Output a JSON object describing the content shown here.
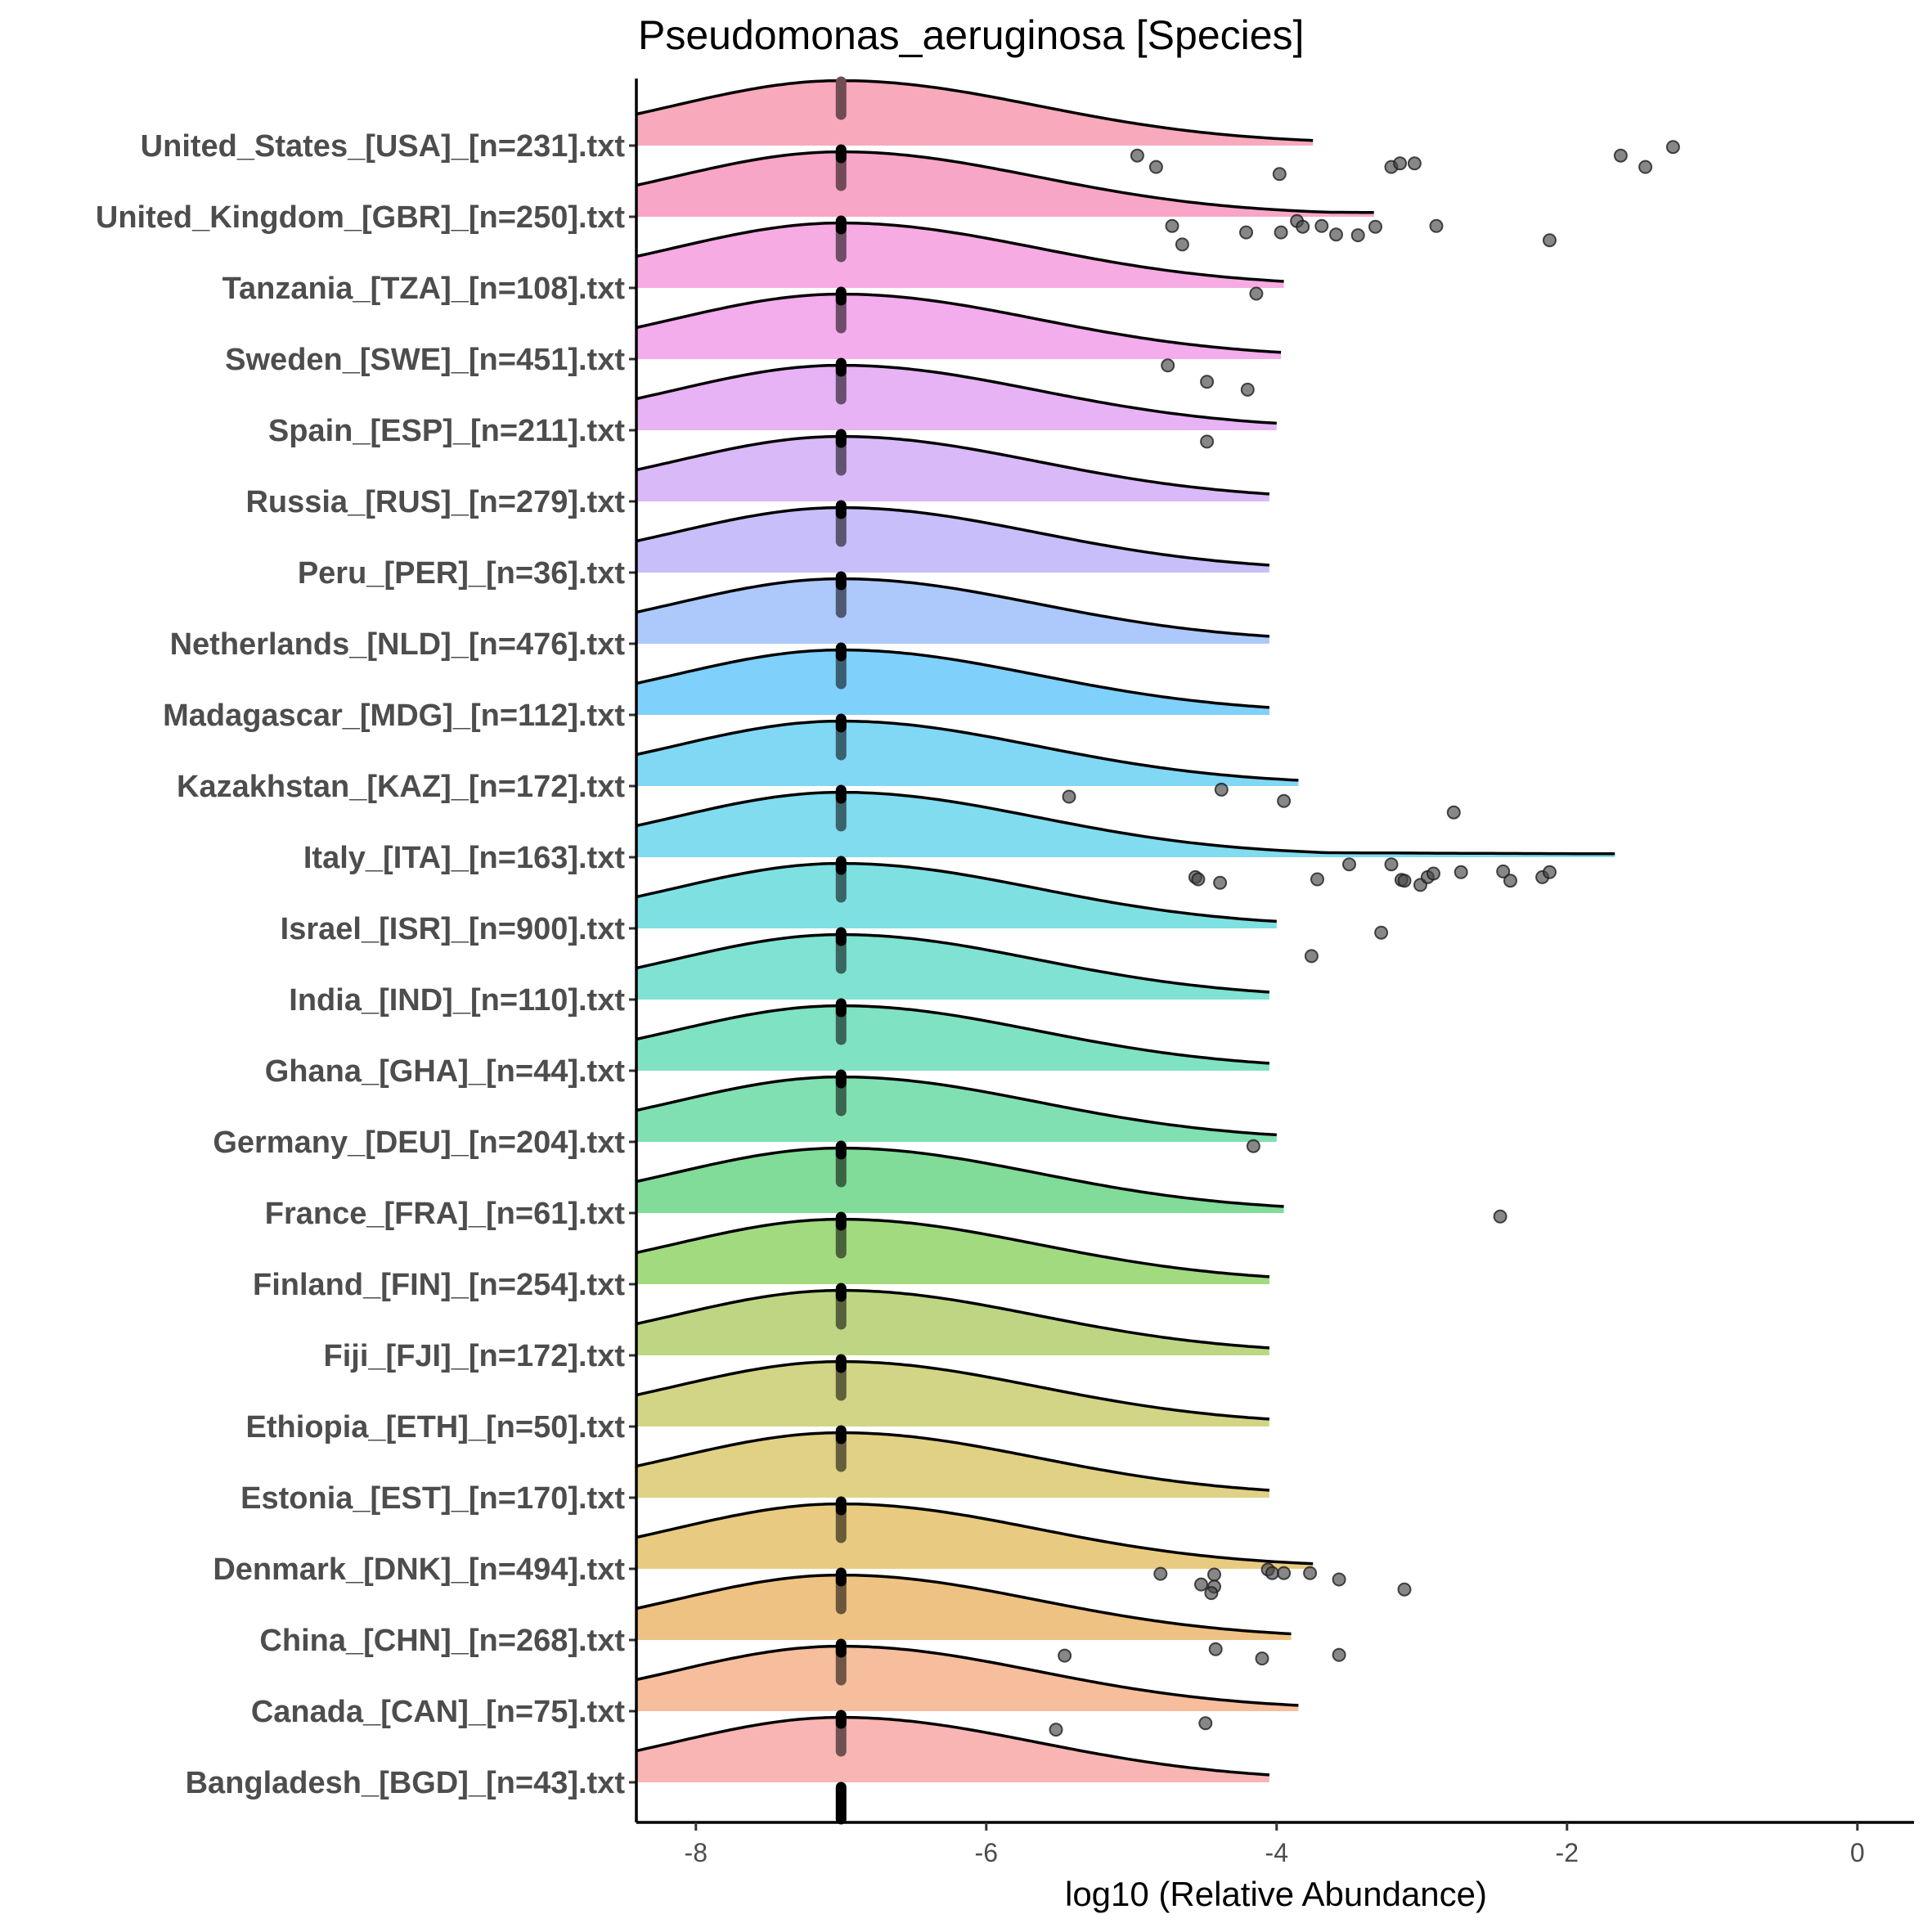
{
  "chart_data": {
    "type": "ridgeline",
    "title": "Pseudomonas_aeruginosa [Species]",
    "xlabel": "log10 (Relative Abundance)",
    "ylabel": "",
    "xlim": [
      -8.41,
      0.39
    ],
    "xticks": [
      -8,
      -6,
      -4,
      -2,
      0
    ],
    "xtick_labels": [
      "-8",
      "-6",
      "-4",
      "-2",
      "0"
    ],
    "grid": false,
    "legend": "none",
    "median_line_color": "#000000",
    "point_color": "#595959",
    "categories": [
      {
        "label": "United_States_[USA]_[n=231].txt",
        "color": "#F8A9BC",
        "peak": -7.0,
        "density_end": -3.75,
        "median": -7.0,
        "points": [
          [
            -4.96,
            0.14
          ],
          [
            -4.83,
            0.3
          ],
          [
            -3.98,
            0.4
          ],
          [
            -3.21,
            0.3
          ],
          [
            -3.15,
            0.25
          ],
          [
            -3.05,
            0.25
          ],
          [
            -1.63,
            0.14
          ],
          [
            -1.46,
            0.3
          ],
          [
            -1.27,
            0.02
          ]
        ]
      },
      {
        "label": "United_Kingdom_[GBR]_[n=250].txt",
        "color": "#F8A6C8",
        "peak": -7.0,
        "density_end": -3.33,
        "median": -7.0,
        "points": [
          [
            -4.72,
            0.13
          ],
          [
            -4.65,
            0.39
          ],
          [
            -4.21,
            0.22
          ],
          [
            -3.97,
            0.22
          ],
          [
            -3.86,
            0.06
          ],
          [
            -3.82,
            0.14
          ],
          [
            -3.69,
            0.13
          ],
          [
            -3.59,
            0.25
          ],
          [
            -3.44,
            0.26
          ],
          [
            -3.32,
            0.14
          ],
          [
            -2.9,
            0.13
          ],
          [
            -2.12,
            0.33
          ]
        ]
      },
      {
        "label": "Tanzania_[TZA]_[n=108].txt",
        "color": "#F6ABE2",
        "peak": -7.0,
        "density_end": -3.95,
        "median": -7.0,
        "points": [
          [
            -4.14,
            0.08
          ]
        ]
      },
      {
        "label": "Sweden_[SWE]_[n=451].txt",
        "color": "#F3ACEC",
        "peak": -7.0,
        "density_end": -3.97,
        "median": -7.0,
        "points": [
          [
            -4.75,
            0.09
          ],
          [
            -4.48,
            0.32
          ],
          [
            -4.2,
            0.43
          ]
        ]
      },
      {
        "label": "Spain_[ESP]_[n=211].txt",
        "color": "#E8B3F5",
        "peak": -7.0,
        "density_end": -4.0,
        "median": -7.0,
        "points": [
          [
            -4.48,
            0.16
          ]
        ]
      },
      {
        "label": "Russia_[RUS]_[n=279].txt",
        "color": "#DAB9F8",
        "peak": -7.0,
        "density_end": -4.05,
        "median": -7.0,
        "points": []
      },
      {
        "label": "Peru_[PER]_[n=36].txt",
        "color": "#C8BEF9",
        "peak": -7.0,
        "density_end": -4.05,
        "median": -7.0,
        "points": []
      },
      {
        "label": "Netherlands_[NLD]_[n=476].txt",
        "color": "#ADC8FA",
        "peak": -7.0,
        "density_end": -4.05,
        "median": -7.0,
        "points": []
      },
      {
        "label": "Madagascar_[MDG]_[n=112].txt",
        "color": "#7FD0FA",
        "peak": -7.0,
        "density_end": -4.05,
        "median": -7.0,
        "points": []
      },
      {
        "label": "Kazakhstan_[KAZ]_[n=172].txt",
        "color": "#80D8F5",
        "peak": -7.0,
        "density_end": -3.85,
        "median": -7.0,
        "points": [
          [
            -5.43,
            0.15
          ],
          [
            -4.38,
            0.05
          ],
          [
            -3.95,
            0.21
          ],
          [
            -2.78,
            0.37
          ]
        ]
      },
      {
        "label": "Italy_[ITA]_[n=163].txt",
        "color": "#80DCEE",
        "peak": -7.0,
        "density_end": -1.67,
        "median": -7.0,
        "points": [
          [
            -4.56,
            0.28
          ],
          [
            -4.54,
            0.31
          ],
          [
            -4.39,
            0.36
          ],
          [
            -3.72,
            0.31
          ],
          [
            -3.5,
            0.1
          ],
          [
            -3.21,
            0.1
          ],
          [
            -3.14,
            0.32
          ],
          [
            -3.12,
            0.33
          ],
          [
            -3.01,
            0.39
          ],
          [
            -2.96,
            0.28
          ],
          [
            -2.92,
            0.23
          ],
          [
            -2.73,
            0.21
          ],
          [
            -2.44,
            0.2
          ],
          [
            -2.39,
            0.33
          ],
          [
            -2.17,
            0.28
          ],
          [
            -2.12,
            0.21
          ]
        ]
      },
      {
        "label": "Israel_[ISR]_[n=900].txt",
        "color": "#7FE0E2",
        "peak": -7.0,
        "density_end": -4.0,
        "median": -7.0,
        "points": [
          [
            -3.28,
            0.06
          ],
          [
            -3.76,
            0.39
          ]
        ]
      },
      {
        "label": "India_[IND]_[n=110].txt",
        "color": "#7FE2D2",
        "peak": -7.0,
        "density_end": -4.05,
        "median": -7.0,
        "points": []
      },
      {
        "label": "Ghana_[GHA]_[n=44].txt",
        "color": "#7FE2C3",
        "peak": -7.0,
        "density_end": -4.05,
        "median": -7.0,
        "points": []
      },
      {
        "label": "Germany_[DEU]_[n=204].txt",
        "color": "#80E0B2",
        "peak": -7.0,
        "density_end": -4.0,
        "median": -7.0,
        "points": [
          [
            -4.16,
            0.06
          ]
        ]
      },
      {
        "label": "France_[FRA]_[n=61].txt",
        "color": "#80DC98",
        "peak": -7.0,
        "density_end": -3.95,
        "median": -7.0,
        "points": [
          [
            -2.46,
            0.05
          ]
        ]
      },
      {
        "label": "Finland_[FIN]_[n=254].txt",
        "color": "#A2DA80",
        "peak": -7.0,
        "density_end": -4.05,
        "median": -7.0,
        "points": []
      },
      {
        "label": "Fiji_[FJI]_[n=172].txt",
        "color": "#BED683",
        "peak": -7.0,
        "density_end": -4.05,
        "median": -7.0,
        "points": []
      },
      {
        "label": "Ethiopia_[ETH]_[n=50].txt",
        "color": "#D2D585",
        "peak": -7.0,
        "density_end": -4.05,
        "median": -7.0,
        "points": []
      },
      {
        "label": "Estonia_[EST]_[n=170].txt",
        "color": "#E0D185",
        "peak": -7.0,
        "density_end": -4.05,
        "median": -7.0,
        "points": []
      },
      {
        "label": "Denmark_[DNK]_[n=494].txt",
        "color": "#E8CB80",
        "peak": -7.0,
        "density_end": -3.75,
        "median": -7.0,
        "points": [
          [
            -4.8,
            0.07
          ],
          [
            -4.52,
            0.22
          ],
          [
            -4.43,
            0.08
          ],
          [
            -4.43,
            0.25
          ],
          [
            -4.45,
            0.34
          ],
          [
            -4.06,
            0.01
          ],
          [
            -4.03,
            0.06
          ],
          [
            -3.95,
            0.06
          ],
          [
            -3.77,
            0.06
          ],
          [
            -3.57,
            0.15
          ],
          [
            -3.12,
            0.29
          ]
        ]
      },
      {
        "label": "China_[CHN]_[n=268].txt",
        "color": "#EEC282",
        "peak": -7.0,
        "density_end": -3.9,
        "median": -7.0,
        "points": [
          [
            -5.46,
            0.22
          ],
          [
            -4.42,
            0.13
          ],
          [
            -4.1,
            0.26
          ],
          [
            -3.57,
            0.21
          ]
        ]
      },
      {
        "label": "Canada_[CAN]_[n=75].txt",
        "color": "#F6BE9C",
        "peak": -7.0,
        "density_end": -3.85,
        "median": -7.0,
        "points": [
          [
            -5.52,
            0.26
          ],
          [
            -4.49,
            0.17
          ]
        ]
      },
      {
        "label": "Bangladesh_[BGD]_[n=43].txt",
        "color": "#F8B5B3",
        "peak": -7.0,
        "density_end": -4.05,
        "median": -7.0,
        "points": []
      }
    ]
  }
}
